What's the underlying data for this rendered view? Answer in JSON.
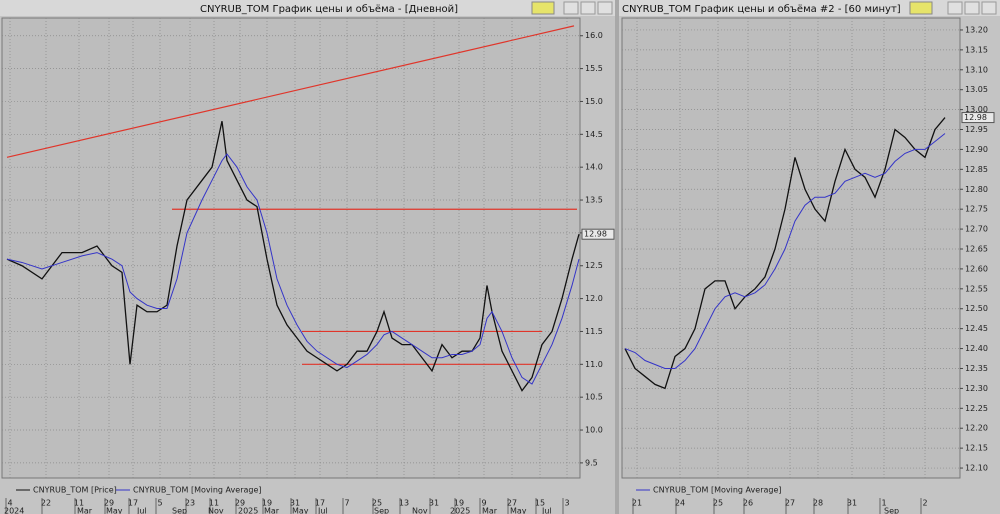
{
  "chart_data": [
    {
      "type": "line",
      "title": "CNYRUB_TOM График цены и объёма - [Дневной]",
      "x": [
        5,
        20,
        40,
        60,
        80,
        95,
        110,
        120,
        128,
        135,
        145,
        155,
        165,
        175,
        185,
        200,
        210,
        220,
        225,
        235,
        245,
        255,
        265,
        275,
        285,
        295,
        305,
        315,
        325,
        335,
        345,
        355,
        365,
        375,
        382,
        390,
        400,
        410,
        420,
        430,
        440,
        450,
        460,
        470,
        478,
        485,
        490,
        500,
        510,
        520,
        530,
        540,
        550,
        560,
        570,
        577
      ],
      "series": [
        {
          "name": "CNYRUB_TOM [Price]",
          "color": "#111111",
          "values": [
            12.6,
            12.5,
            12.3,
            12.7,
            12.7,
            12.8,
            12.5,
            12.4,
            11.0,
            11.9,
            11.8,
            11.8,
            11.9,
            12.8,
            13.5,
            13.8,
            14.0,
            14.7,
            14.1,
            13.8,
            13.5,
            13.4,
            12.6,
            11.9,
            11.6,
            11.4,
            11.2,
            11.1,
            11.0,
            10.9,
            11.0,
            11.2,
            11.2,
            11.5,
            11.8,
            11.4,
            11.3,
            11.3,
            11.1,
            10.9,
            11.3,
            11.1,
            11.2,
            11.2,
            11.4,
            12.2,
            11.8,
            11.2,
            10.9,
            10.6,
            10.8,
            11.3,
            11.5,
            12.0,
            12.6,
            12.98
          ]
        },
        {
          "name": "CNYRUB_TOM [Moving Average]",
          "color": "#3434c8",
          "values": [
            12.6,
            12.55,
            12.45,
            12.55,
            12.65,
            12.7,
            12.6,
            12.5,
            12.1,
            12.0,
            11.9,
            11.85,
            11.85,
            12.3,
            13.0,
            13.5,
            13.8,
            14.1,
            14.2,
            14.0,
            13.7,
            13.5,
            13.0,
            12.3,
            11.9,
            11.6,
            11.35,
            11.2,
            11.1,
            11.0,
            10.95,
            11.05,
            11.15,
            11.3,
            11.45,
            11.5,
            11.4,
            11.3,
            11.2,
            11.1,
            11.1,
            11.15,
            11.15,
            11.2,
            11.3,
            11.7,
            11.8,
            11.5,
            11.1,
            10.8,
            10.7,
            11.0,
            11.3,
            11.7,
            12.2,
            12.6
          ]
        }
      ],
      "lines": [
        {
          "x": [
            5,
            572
          ],
          "y": [
            14.15,
            16.15
          ],
          "color": "#e0352a"
        },
        {
          "x": [
            170,
            575
          ],
          "y": [
            13.36,
            13.36
          ],
          "color": "#e0352a"
        },
        {
          "x": [
            300,
            540
          ],
          "y": [
            11.5,
            11.5
          ],
          "color": "#e0352a"
        },
        {
          "x": [
            300,
            540
          ],
          "y": [
            11.0,
            11.0
          ],
          "color": "#e0352a"
        }
      ],
      "last_value": 12.98,
      "xlim": [
        0,
        578
      ],
      "ylim": [
        9.27,
        16.27
      ],
      "yticks": [
        9.5,
        {
          "value": 10,
          "label": "10.0"
        },
        10.5,
        {
          "value": 11,
          "label": "11.0"
        },
        11.5,
        {
          "value": 12,
          "label": "12.0"
        },
        12.5,
        {
          "value": 13,
          "label": "13.0"
        },
        13.5,
        {
          "value": 14,
          "label": "14.0"
        },
        14.5,
        {
          "value": 15,
          "label": "15.0"
        },
        15.5,
        {
          "value": 16,
          "label": "16.0"
        }
      ],
      "xticks": [
        {
          "value": 8,
          "label": "4"
        },
        {
          "value": 44,
          "label": "22"
        },
        {
          "value": 77,
          "label": "11"
        },
        {
          "value": 107,
          "label": "29"
        },
        {
          "value": 131,
          "label": "17"
        },
        {
          "value": 158,
          "label": "5"
        },
        {
          "value": 188,
          "label": "23"
        },
        {
          "value": 212,
          "label": "11"
        },
        {
          "value": 238,
          "label": "29"
        },
        {
          "value": 265,
          "label": "19"
        },
        {
          "value": 293,
          "label": "31"
        },
        {
          "value": 318,
          "label": "17"
        },
        {
          "value": 345,
          "label": "7"
        },
        {
          "value": 375,
          "label": "25"
        },
        {
          "value": 402,
          "label": "13"
        },
        {
          "value": 432,
          "label": "31"
        },
        {
          "value": 457,
          "label": "19"
        },
        {
          "value": 482,
          "label": "9"
        },
        {
          "value": 510,
          "label": "27"
        },
        {
          "value": 538,
          "label": "15"
        },
        {
          "value": 565,
          "label": "3"
        }
      ],
      "xticks_months": [
        {
          "value": 2,
          "label": "2024"
        },
        {
          "value": 75,
          "label": "Mar"
        },
        {
          "value": 104,
          "label": "May"
        },
        {
          "value": 135,
          "label": "Jul"
        },
        {
          "value": 170,
          "label": "Sep"
        },
        {
          "value": 206,
          "label": "Nov"
        },
        {
          "value": 236,
          "label": "2025"
        },
        {
          "value": 262,
          "label": "Mar"
        },
        {
          "value": 290,
          "label": "May"
        },
        {
          "value": 316,
          "label": "Jul"
        },
        {
          "value": 372,
          "label": "Sep"
        },
        {
          "value": 410,
          "label": "Nov"
        },
        {
          "value": 448,
          "label": "2025"
        },
        {
          "value": 480,
          "label": "Mar"
        },
        {
          "value": 508,
          "label": "May"
        },
        {
          "value": 540,
          "label": "Jul"
        }
      ],
      "grid": true
    },
    {
      "type": "line",
      "title": "CNYRUB_TOM График цены и объёма #2 - [60 минут]",
      "x": [
        3,
        13,
        23,
        33,
        43,
        53,
        63,
        73,
        83,
        93,
        103,
        113,
        123,
        133,
        143,
        153,
        163,
        173,
        183,
        193,
        203,
        213,
        223,
        233,
        243,
        253,
        263,
        273,
        283,
        293,
        303,
        313,
        323
      ],
      "series": [
        {
          "color": "#111111",
          "values": [
            12.4,
            12.35,
            12.33,
            12.31,
            12.3,
            12.38,
            12.4,
            12.45,
            12.55,
            12.57,
            12.57,
            12.5,
            12.53,
            12.55,
            12.58,
            12.65,
            12.75,
            12.88,
            12.8,
            12.75,
            12.72,
            12.82,
            12.9,
            12.85,
            12.83,
            12.78,
            12.85,
            12.95,
            12.93,
            12.9,
            12.88,
            12.95,
            12.98
          ]
        },
        {
          "name": "CNYRUB_TOM [Moving Average]",
          "color": "#3434c8",
          "values": [
            12.4,
            12.39,
            12.37,
            12.36,
            12.35,
            12.35,
            12.37,
            12.4,
            12.45,
            12.5,
            12.53,
            12.54,
            12.53,
            12.54,
            12.56,
            12.6,
            12.65,
            12.72,
            12.76,
            12.78,
            12.78,
            12.79,
            12.82,
            12.83,
            12.84,
            12.83,
            12.84,
            12.87,
            12.89,
            12.9,
            12.9,
            12.92,
            12.94
          ]
        }
      ],
      "lines": [],
      "last_value": 12.98,
      "xlim": [
        0,
        338
      ],
      "ylim": [
        12.075,
        13.23
      ],
      "yticks": [
        {
          "value": 12.1,
          "label": "12.10"
        },
        12.15,
        {
          "value": 12.2,
          "label": "12.20"
        },
        12.25,
        {
          "value": 12.3,
          "label": "12.30"
        },
        12.35,
        {
          "value": 12.4,
          "label": "12.40"
        },
        12.45,
        {
          "value": 12.5,
          "label": "12.50"
        },
        12.55,
        {
          "value": 12.6,
          "label": "12.60"
        },
        12.65,
        {
          "value": 12.7,
          "label": "12.70"
        },
        12.75,
        {
          "value": 12.8,
          "label": "12.80"
        },
        12.85,
        {
          "value": 12.9,
          "label": "12.90"
        },
        12.95,
        {
          "value": 13,
          "label": "13.00"
        },
        13.05,
        {
          "value": 13.1,
          "label": "13.10"
        },
        13.15,
        {
          "value": 13.2,
          "label": "13.20"
        }
      ],
      "xticks": [
        {
          "value": 15,
          "label": "21"
        },
        {
          "value": 58,
          "label": "24"
        },
        {
          "value": 96,
          "label": "25"
        },
        {
          "value": 126,
          "label": "26"
        },
        {
          "value": 168,
          "label": "27"
        },
        {
          "value": 196,
          "label": "28"
        },
        {
          "value": 230,
          "label": "31"
        },
        {
          "value": 262,
          "label": "1"
        },
        {
          "value": 303,
          "label": "2"
        }
      ],
      "xticks_months": [
        {
          "value": 262,
          "label": "Sep"
        }
      ],
      "grid": true
    }
  ]
}
